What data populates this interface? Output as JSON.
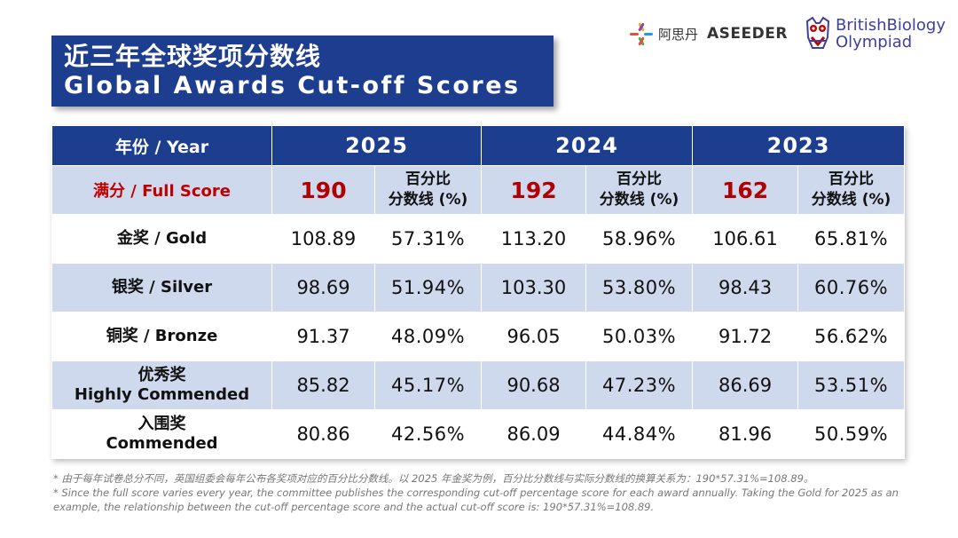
{
  "title": {
    "cn": "近三年全球奖项分数线",
    "en": "Global Awards Cut-off Scores"
  },
  "logos": {
    "asi_cn": "阿思丹",
    "aseeder": "ASEEDER",
    "bbo_line1": "BritishBiology",
    "bbo_line2": "Olympiad"
  },
  "table": {
    "header_label": "年份 / Year",
    "years": [
      "2025",
      "2024",
      "2023"
    ],
    "full_score_label": "满分 / Full Score",
    "full_scores": [
      "190",
      "192",
      "162"
    ],
    "pct_label_line1": "百分比",
    "pct_label_line2": "分数线 (%)",
    "rows": [
      {
        "label1": "金奖 / Gold",
        "label2": "",
        "values": [
          "108.89",
          "57.31%",
          "113.20",
          "58.96%",
          "106.61",
          "65.81%"
        ]
      },
      {
        "label1": "银奖 / Silver",
        "label2": "",
        "values": [
          "98.69",
          "51.94%",
          "103.30",
          "53.80%",
          "98.43",
          "60.76%"
        ]
      },
      {
        "label1": "铜奖 / Bronze",
        "label2": "",
        "values": [
          "91.37",
          "48.09%",
          "96.05",
          "50.03%",
          "91.72",
          "56.62%"
        ]
      },
      {
        "label1": "优秀奖",
        "label2": "Highly Commended",
        "values": [
          "85.82",
          "45.17%",
          "90.68",
          "47.23%",
          "86.69",
          "53.51%"
        ]
      },
      {
        "label1": "入围奖",
        "label2": "Commended",
        "values": [
          "80.86",
          "42.56%",
          "86.09",
          "44.84%",
          "81.96",
          "50.59%"
        ]
      }
    ]
  },
  "notes": {
    "cn": "* 由于每年试卷总分不同，英国组委会每年公布各奖项对应的百分比分数线。以 2025 年金奖为例，百分比分数线与实际分数线的换算关系为：190*57.31%=108.89。",
    "en": "* Since the full score varies every year, the committee publishes the corresponding cut-off percentage score for each award annually. Taking the Gold for 2025 as an example, the relationship between the cut-off percentage score and the actual cut-off score is: 190*57.31%=108.89."
  }
}
